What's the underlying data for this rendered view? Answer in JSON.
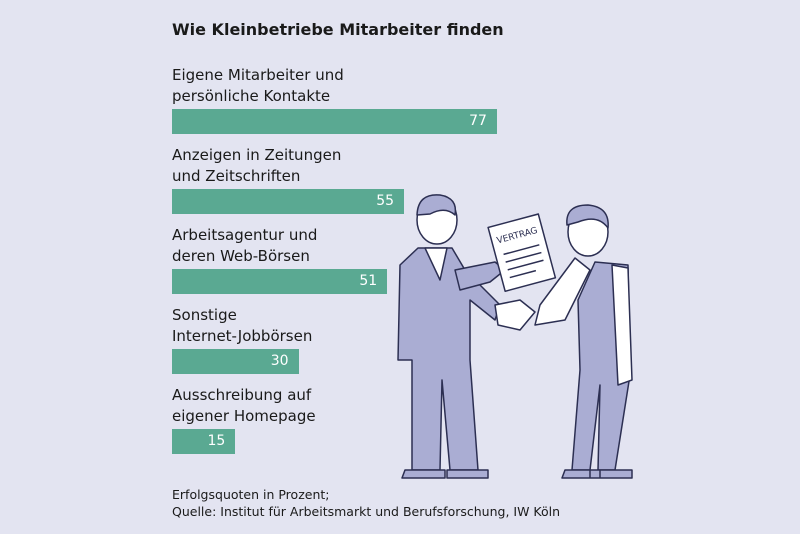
{
  "chart_data": {
    "type": "bar",
    "orientation": "horizontal",
    "title": "Wie Kleinbetriebe Mitarbeiter finden",
    "categories": [
      "Eigene Mitarbeiter und\npersönliche Kontakte",
      "Anzeigen in Zeitungen\nund Zeitschriften",
      "Arbeitsagentur und\nderen Web-Börsen",
      "Sonstige\nInternet-Jobbörsen",
      "Ausschreibung auf\neigener Homepage"
    ],
    "values": [
      77,
      55,
      51,
      30,
      15
    ],
    "color": "#5aa992",
    "note": "Erfolgsquoten in Prozent;",
    "source": "Quelle: Institut für Arbeitsmarkt und Berufsforschung, IW Köln",
    "illustration_label": "VERTRAG"
  }
}
